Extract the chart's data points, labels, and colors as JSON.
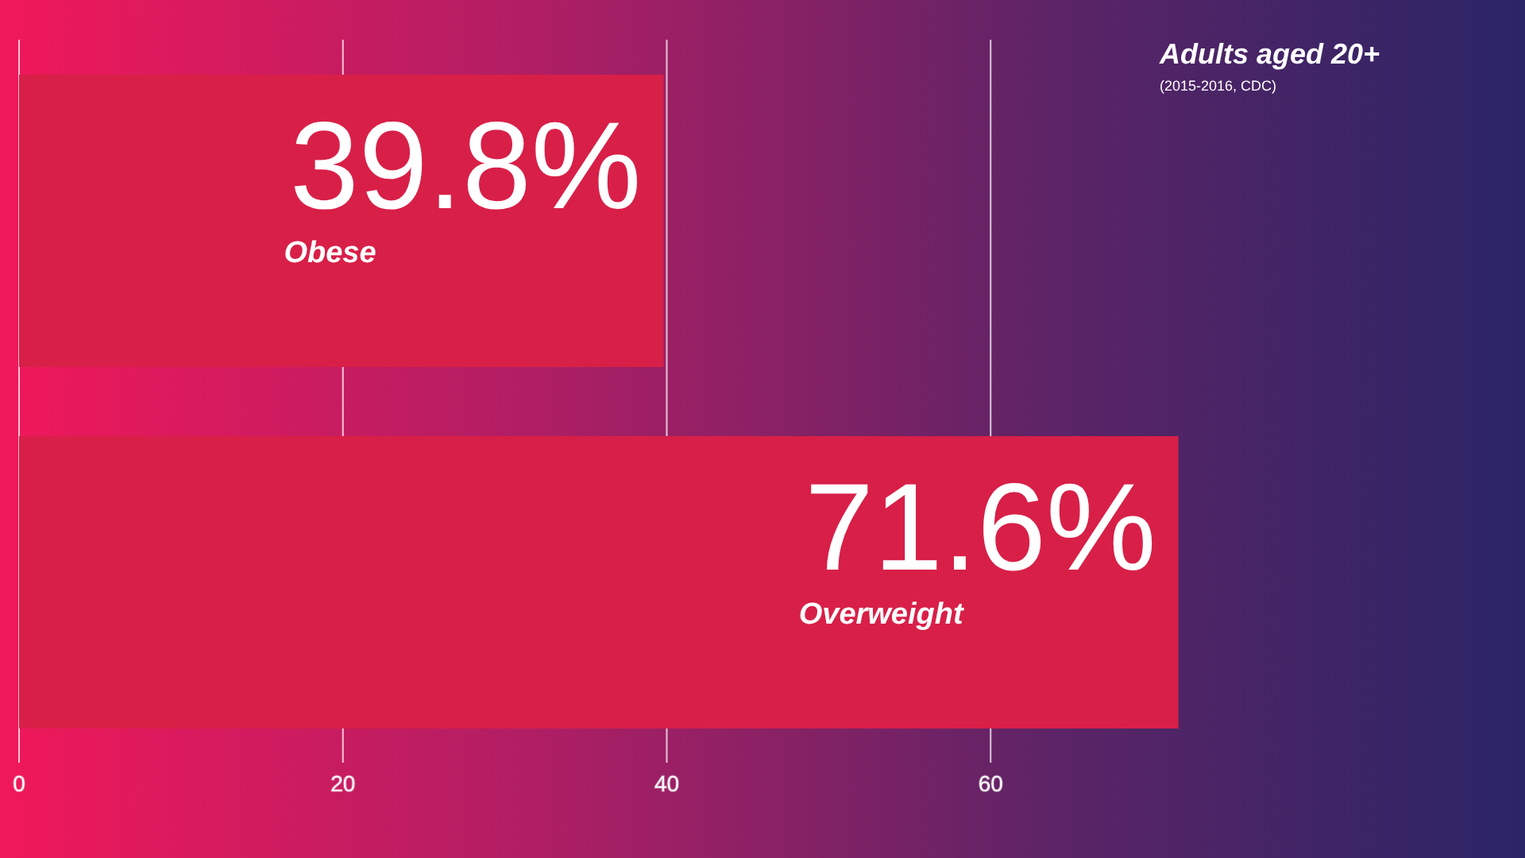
{
  "chart_data": {
    "type": "bar",
    "orientation": "horizontal",
    "title": "Adults aged 20+",
    "subtitle": "(2015-2016, CDC)",
    "categories": [
      "Obese",
      "Overweight"
    ],
    "values": [
      39.8,
      71.6
    ],
    "color": "#d81f48",
    "value_labels": [
      "39.8%",
      "71.6%"
    ],
    "xlim": [
      0,
      93
    ],
    "xticks": [
      0,
      20,
      40,
      60
    ],
    "grid": "x",
    "tick_labels": "x"
  }
}
